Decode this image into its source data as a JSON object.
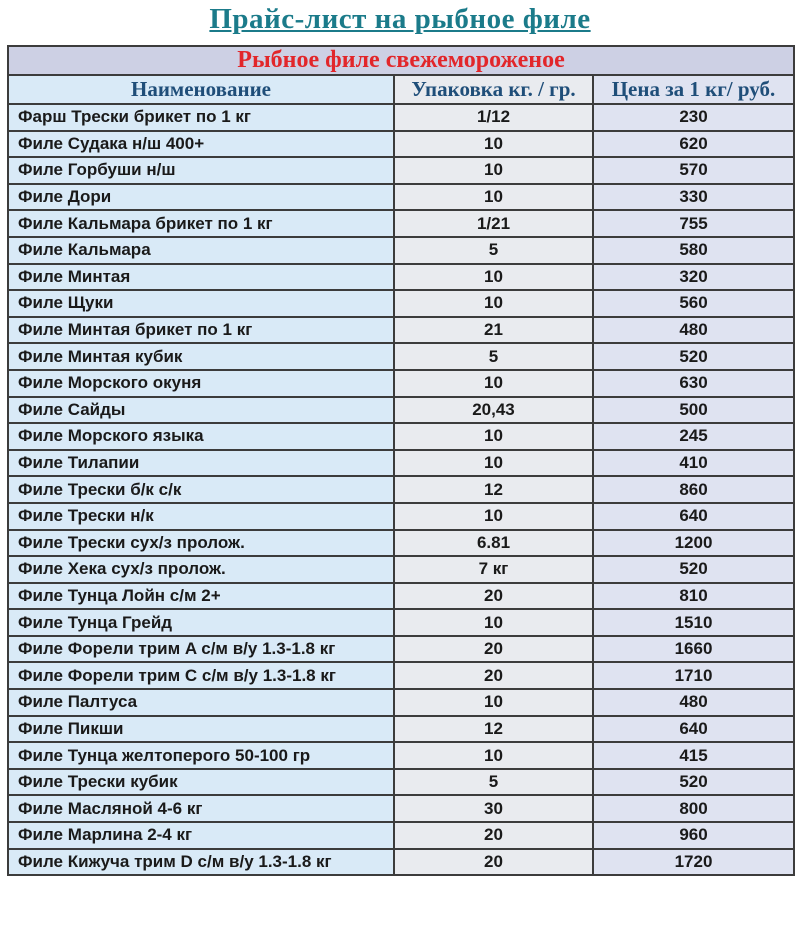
{
  "page": {
    "title": "Прайс-лист на рыбное филе"
  },
  "table": {
    "section_header": "Рыбное филе свежемороженое",
    "columns": [
      "Наименование",
      "Упаковка кг. / гр.",
      "Цена за 1 кг/ руб."
    ],
    "rows": [
      {
        "name": "Фарш Трески брикет по 1 кг",
        "pack": "1/12",
        "price": "230"
      },
      {
        "name": "Филе Судака н/ш 400+",
        "pack": "10",
        "price": "620"
      },
      {
        "name": "Филе Горбуши н/ш",
        "pack": "10",
        "price": "570"
      },
      {
        "name": "Филе Дори",
        "pack": "10",
        "price": "330"
      },
      {
        "name": "Филе Кальмара брикет по 1 кг",
        "pack": "1/21",
        "price": "755"
      },
      {
        "name": "Филе Кальмара",
        "pack": "5",
        "price": "580"
      },
      {
        "name": "Филе Минтая",
        "pack": "10",
        "price": "320"
      },
      {
        "name": "Филе Щуки",
        "pack": "10",
        "price": "560"
      },
      {
        "name": "Филе Минтая брикет по 1 кг",
        "pack": "21",
        "price": "480"
      },
      {
        "name": "Филе Минтая кубик",
        "pack": "5",
        "price": "520"
      },
      {
        "name": "Филе Морского окуня",
        "pack": "10",
        "price": "630"
      },
      {
        "name": "Филе Сайды",
        "pack": "20,43",
        "price": "500"
      },
      {
        "name": "Филе Морского языка",
        "pack": "10",
        "price": "245"
      },
      {
        "name": "Филе Тилапии",
        "pack": "10",
        "price": "410"
      },
      {
        "name": "Филе Трески б/к с/к",
        "pack": "12",
        "price": "860"
      },
      {
        "name": "Филе Трески н/к",
        "pack": "10",
        "price": "640"
      },
      {
        "name": "Филе Трески сух/з пролож.",
        "pack": "6.81",
        "price": "1200"
      },
      {
        "name": "Филе Хека сух/з пролож.",
        "pack": "7 кг",
        "price": "520"
      },
      {
        "name": "Филе Тунца Лойн с/м 2+",
        "pack": "20",
        "price": "810"
      },
      {
        "name": "Филе Тунца Грейд",
        "pack": "10",
        "price": "1510"
      },
      {
        "name": "Филе Форели трим A с/м в/у 1.3-1.8 кг",
        "pack": "20",
        "price": "1660"
      },
      {
        "name": "Филе Форели трим C с/м в/у 1.3-1.8 кг",
        "pack": "20",
        "price": "1710"
      },
      {
        "name": "Филе Палтуса",
        "pack": "10",
        "price": "480"
      },
      {
        "name": "Филе Пикши",
        "pack": "12",
        "price": "640"
      },
      {
        "name": "Филе Тунца желтоперого 50-100 гр",
        "pack": "10",
        "price": "415"
      },
      {
        "name": "Филе Трески кубик",
        "pack": "5",
        "price": "520"
      },
      {
        "name": "Филе Масляной 4-6 кг",
        "pack": "30",
        "price": "800"
      },
      {
        "name": "Филе Марлина 2-4 кг",
        "pack": "20",
        "price": "960"
      },
      {
        "name": "Филе Кижуча трим D с/м в/у 1.3-1.8 кг",
        "pack": "20",
        "price": "1720"
      }
    ]
  },
  "colors": {
    "title_text": "#1B7B8A",
    "section_header_text": "#E2262A",
    "section_header_bg": "#CDD0E4",
    "column_header_text": "#1F4E79",
    "name_column_bg": "#D9EAF7",
    "pack_column_bg": "#E9EBEF",
    "price_column_bg": "#DFE3F1",
    "row_text": "#1A1A1A",
    "border": "#3C3C3C"
  }
}
